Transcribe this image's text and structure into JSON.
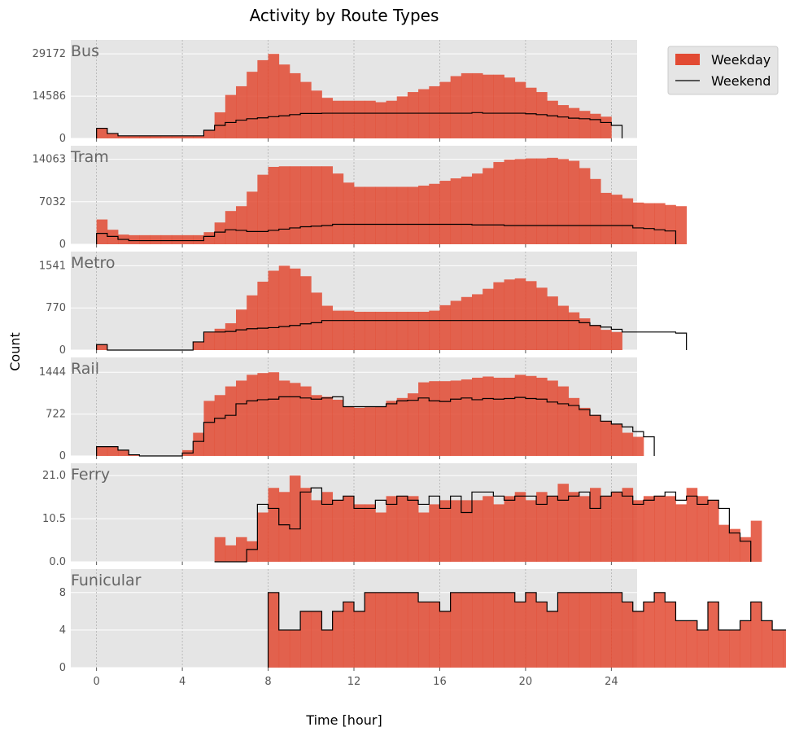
{
  "chart_data": {
    "type": "bar",
    "title": "Activity by Route Types",
    "xlabel": "Time [hour]",
    "ylabel": "Count",
    "xlim": [
      -1.2,
      25.2
    ],
    "xticks": [
      0,
      4,
      8,
      12,
      16,
      20,
      24
    ],
    "legend": {
      "placement": "top-right outside",
      "entries": [
        "Weekday",
        "Weekend"
      ]
    },
    "grid": true,
    "colors": {
      "weekday": "#e24a33",
      "weekend": "#000000",
      "panel_bg": "#e5e5e5",
      "grid": "#ffffff"
    },
    "panels": [
      {
        "name": "Bus",
        "ylim": [
          0,
          34000
        ],
        "yticks": [
          0,
          14586,
          29172
        ],
        "bins": {
          "start": 0,
          "width": 0.5
        },
        "weekday": [
          3500,
          1700,
          900,
          900,
          900,
          900,
          900,
          900,
          900,
          900,
          2800,
          9000,
          15000,
          18000,
          23000,
          27000,
          29172,
          25500,
          22500,
          19500,
          16500,
          14000,
          13000,
          13000,
          13000,
          13000,
          12500,
          13000,
          14500,
          16000,
          17000,
          18000,
          19500,
          21500,
          22500,
          22500,
          22000,
          22000,
          21000,
          19500,
          17500,
          16000,
          13000,
          11500,
          10500,
          9500,
          8500,
          7500
        ],
        "weekend": [
          3500,
          1700,
          900,
          900,
          900,
          900,
          900,
          900,
          900,
          900,
          2800,
          4500,
          5500,
          6300,
          6800,
          7100,
          7500,
          7800,
          8200,
          8600,
          8600,
          8700,
          8700,
          8700,
          8700,
          8700,
          8700,
          8700,
          8700,
          8700,
          8700,
          8700,
          8700,
          8700,
          8700,
          8900,
          8700,
          8700,
          8700,
          8700,
          8500,
          8200,
          7800,
          7400,
          7000,
          6800,
          6500,
          5500,
          4500
        ]
      },
      {
        "name": "Tram",
        "ylim": [
          0,
          16300
        ],
        "yticks": [
          0,
          7032,
          14063
        ],
        "bins": {
          "start": 0,
          "width": 0.5
        },
        "weekday": [
          4100,
          2400,
          1600,
          1500,
          1500,
          1500,
          1500,
          1500,
          1500,
          1500,
          2000,
          3600,
          5500,
          6300,
          8700,
          11500,
          12800,
          12900,
          12900,
          12900,
          12900,
          12900,
          11700,
          10200,
          9500,
          9500,
          9500,
          9500,
          9500,
          9500,
          9700,
          10000,
          10500,
          10900,
          11200,
          11700,
          12600,
          13600,
          14000,
          14100,
          14200,
          14200,
          14300,
          14100,
          13800,
          12600,
          10800,
          8500,
          8200,
          7600,
          6900,
          6800,
          6800,
          6500,
          6300
        ],
        "weekend": [
          1800,
          1300,
          800,
          600,
          600,
          600,
          600,
          600,
          600,
          600,
          1300,
          2000,
          2400,
          2300,
          2100,
          2100,
          2300,
          2500,
          2700,
          2900,
          3000,
          3100,
          3300,
          3300,
          3300,
          3300,
          3300,
          3300,
          3300,
          3300,
          3300,
          3300,
          3300,
          3300,
          3300,
          3200,
          3200,
          3200,
          3100,
          3100,
          3100,
          3100,
          3100,
          3100,
          3100,
          3100,
          3100,
          3100,
          3100,
          3100,
          2700,
          2600,
          2400,
          2200
        ]
      },
      {
        "name": "Metro",
        "ylim": [
          0,
          1800
        ],
        "yticks": [
          0,
          770,
          1541
        ],
        "bins": {
          "start": 0,
          "width": 0.5
        },
        "weekday": [
          100,
          0,
          0,
          0,
          0,
          0,
          0,
          0,
          0,
          150,
          330,
          390,
          490,
          740,
          1000,
          1250,
          1450,
          1541,
          1490,
          1350,
          1050,
          810,
          720,
          720,
          700,
          700,
          700,
          700,
          700,
          700,
          700,
          720,
          820,
          900,
          970,
          1020,
          1120,
          1240,
          1290,
          1310,
          1260,
          1140,
          980,
          810,
          690,
          580,
          450,
          370,
          330
        ],
        "weekend": [
          100,
          0,
          0,
          0,
          0,
          0,
          0,
          0,
          0,
          150,
          330,
          330,
          340,
          370,
          390,
          400,
          410,
          430,
          450,
          480,
          500,
          540,
          540,
          540,
          540,
          540,
          540,
          540,
          540,
          540,
          540,
          540,
          540,
          540,
          540,
          540,
          540,
          540,
          540,
          540,
          540,
          540,
          540,
          540,
          540,
          500,
          450,
          420,
          380,
          330,
          330,
          330,
          330,
          330,
          310
        ]
      },
      {
        "name": "Rail",
        "ylim": [
          0,
          1700
        ],
        "yticks": [
          0,
          722,
          1444
        ],
        "bins": {
          "start": 0,
          "width": 0.5
        },
        "weekday": [
          160,
          160,
          100,
          20,
          0,
          0,
          0,
          0,
          100,
          400,
          950,
          1050,
          1200,
          1300,
          1400,
          1430,
          1444,
          1300,
          1260,
          1200,
          1050,
          1020,
          970,
          850,
          830,
          840,
          850,
          950,
          1000,
          1080,
          1270,
          1290,
          1290,
          1300,
          1320,
          1350,
          1370,
          1350,
          1350,
          1400,
          1380,
          1350,
          1300,
          1200,
          1000,
          830,
          710,
          600,
          550,
          400,
          330
        ],
        "weekend": [
          160,
          160,
          100,
          20,
          0,
          0,
          0,
          0,
          50,
          250,
          580,
          650,
          700,
          900,
          950,
          970,
          980,
          1020,
          1020,
          1000,
          980,
          1000,
          1020,
          850,
          850,
          850,
          850,
          900,
          950,
          960,
          1000,
          950,
          940,
          980,
          1000,
          970,
          990,
          980,
          990,
          1010,
          990,
          980,
          930,
          900,
          870,
          800,
          700,
          600,
          550,
          500,
          420,
          330
        ]
      },
      {
        "name": "Ferry",
        "ylim": [
          0,
          24.0
        ],
        "yticks": [
          0.0,
          10.5,
          21.0
        ],
        "bins": {
          "start": 5.5,
          "width": 0.5
        },
        "weekday": [
          6,
          4,
          6,
          5,
          12,
          18,
          17,
          21,
          18,
          15,
          17,
          15,
          16,
          14,
          14,
          12,
          16,
          16,
          16,
          12,
          14,
          15,
          15,
          15,
          15,
          16,
          14,
          16,
          17,
          15,
          17,
          16,
          19,
          17,
          16,
          18,
          16,
          17,
          18,
          15,
          16,
          16,
          16,
          14,
          18,
          16,
          15,
          9,
          8,
          6,
          10
        ],
        "weekend": [
          0,
          0,
          0,
          3,
          14,
          13,
          9,
          8,
          17,
          18,
          14,
          15,
          16,
          13,
          13,
          15,
          14,
          16,
          15,
          14,
          16,
          13,
          16,
          12,
          17,
          17,
          16,
          15,
          16,
          16,
          14,
          16,
          15,
          16,
          17,
          13,
          16,
          17,
          16,
          14,
          15,
          16,
          17,
          15,
          16,
          14,
          15,
          13,
          7,
          5
        ]
      },
      {
        "name": "Funicular",
        "ylim": [
          0,
          10.5
        ],
        "yticks": [
          0,
          4,
          8
        ],
        "bins": {
          "start": 8,
          "width": 0.5
        },
        "weekday": [
          8,
          4,
          4,
          6,
          6,
          4,
          6,
          7,
          6,
          8,
          8,
          8,
          8,
          8,
          7,
          7,
          6,
          8,
          8,
          8,
          8,
          8,
          8,
          7,
          8,
          7,
          6,
          8,
          8,
          8,
          8,
          8,
          8,
          7,
          6,
          7,
          8,
          7,
          5,
          5,
          4,
          7,
          4,
          4,
          5,
          7,
          5,
          4,
          4,
          4,
          8,
          8
        ],
        "weekend": [
          8,
          4,
          4,
          6,
          6,
          4,
          6,
          7,
          6,
          8,
          8,
          8,
          8,
          8,
          7,
          7,
          6,
          8,
          8,
          8,
          8,
          8,
          8,
          7,
          8,
          7,
          6,
          8,
          8,
          8,
          8,
          8,
          8,
          7,
          6,
          7,
          8,
          7,
          5,
          5,
          4,
          7,
          4,
          4,
          5,
          7,
          5,
          4,
          4,
          4,
          8,
          8
        ]
      }
    ]
  }
}
